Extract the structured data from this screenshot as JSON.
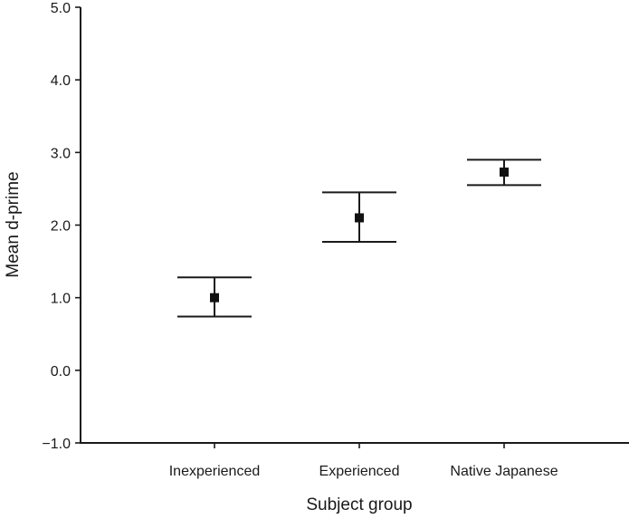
{
  "chart_data": {
    "type": "scatter",
    "title": "",
    "xlabel": "Subject group",
    "ylabel": "Mean d-prime",
    "categories": [
      "Inexperienced",
      "Experienced",
      "Native Japanese"
    ],
    "series": [
      {
        "values": [
          1.0,
          2.1,
          2.73
        ],
        "error_low": [
          0.74,
          1.77,
          2.55
        ],
        "error_high": [
          1.28,
          2.45,
          2.9
        ]
      }
    ],
    "ylim": [
      -1.0,
      5.0
    ],
    "yticks": [
      -1.0,
      0.0,
      1.0,
      2.0,
      3.0,
      4.0,
      5.0
    ],
    "ytick_labels": [
      "−1.0",
      "0.0",
      "1.0",
      "2.0",
      "3.0",
      "4.0",
      "5.0"
    ],
    "grid": false,
    "marker": "square",
    "colors": {
      "axis": "#1a1a1a",
      "marker": "#111111"
    }
  }
}
